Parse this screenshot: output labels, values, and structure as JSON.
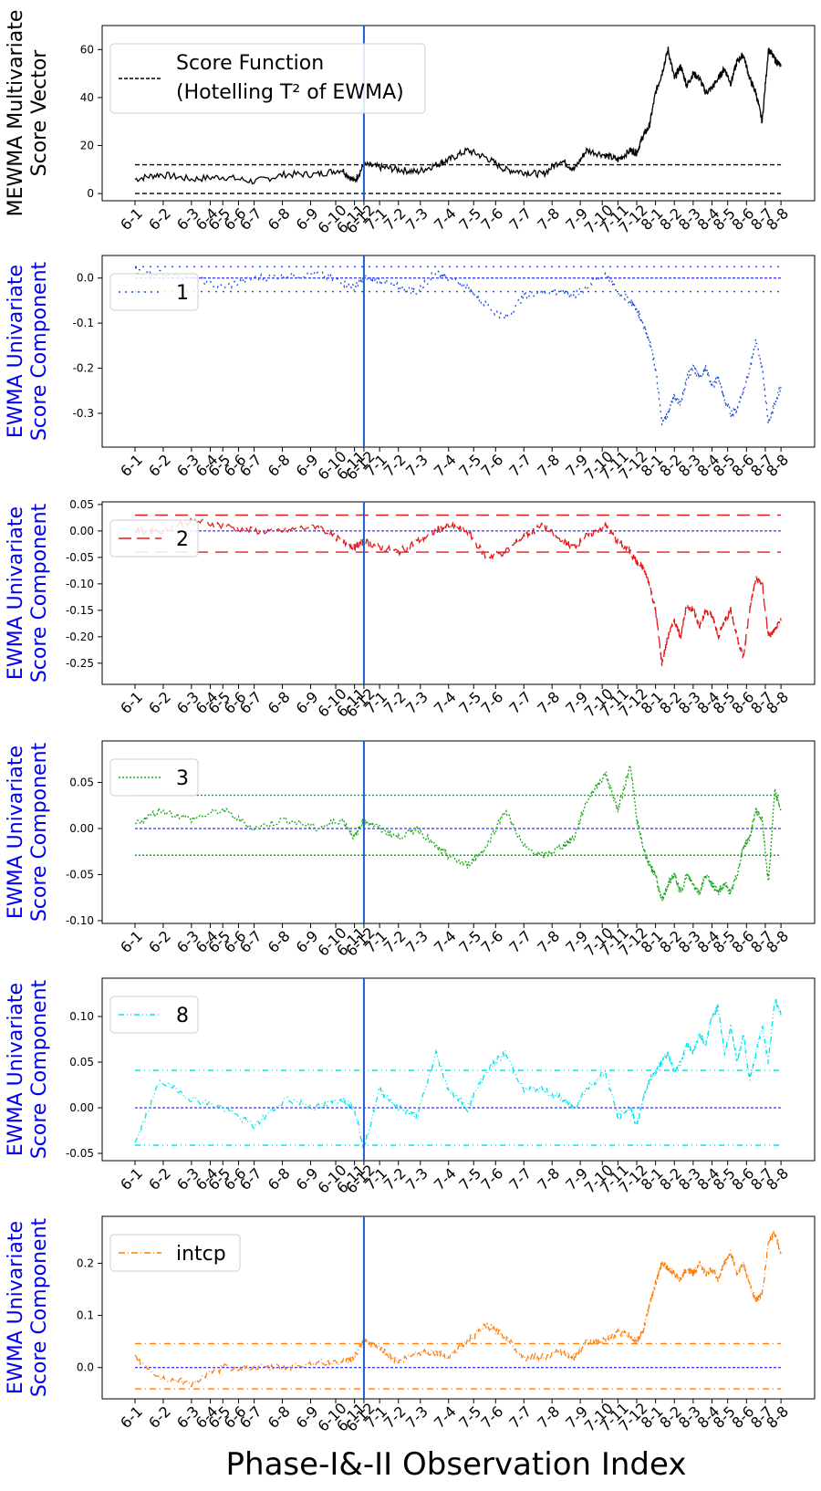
{
  "figure": {
    "xlabel": "Phase-I&-II Observation Index",
    "x_tick_labels": [
      "6-1",
      "6-2",
      "6-3",
      "6-4",
      "6-5",
      "6-6",
      "6-7",
      "6-8",
      "6-9",
      "6-10",
      "6-11",
      "6-12",
      "7-1",
      "7-2",
      "7-3",
      "7-4",
      "7-5",
      "7-6",
      "7-7",
      "7-8",
      "7-9",
      "7-10",
      "7-11",
      "7-12",
      "8-1",
      "8-2",
      "8-3",
      "8-4",
      "8-5",
      "8-6",
      "8-7",
      "8-8"
    ],
    "x_tick_positions": [
      0,
      45,
      90,
      120,
      140,
      165,
      190,
      235,
      280,
      320,
      350,
      365,
      390,
      420,
      455,
      500,
      540,
      575,
      620,
      665,
      710,
      745,
      770,
      800,
      830,
      860,
      890,
      920,
      945,
      975,
      1005,
      1030
    ],
    "x_range": [
      0,
      1040
    ],
    "changepoint_x": 365,
    "changepoint_color": "#1f5fd0"
  },
  "chart_data": [
    {
      "type": "line",
      "ylabel": "MEWMA Multivariate Score Vector",
      "ylabel_color": "#000000",
      "ylim": [
        -3,
        70
      ],
      "yticks": [
        0,
        20,
        40,
        60
      ],
      "color": "#000000",
      "legend": {
        "label_line1": "Score Function",
        "label_line2": "(Hotelling T² of EWMA)",
        "placement": "upper-left"
      },
      "upper_limit": 12,
      "lower_limit": 0,
      "center_line": null,
      "x": [
        0,
        40,
        90,
        140,
        190,
        240,
        290,
        330,
        350,
        365,
        390,
        420,
        450,
        480,
        500,
        530,
        560,
        590,
        620,
        650,
        680,
        700,
        720,
        750,
        770,
        790,
        800,
        810,
        820,
        830,
        840,
        850,
        860,
        870,
        880,
        890,
        900,
        910,
        920,
        930,
        940,
        950,
        960,
        970,
        980,
        990,
        1000,
        1010,
        1020,
        1030
      ],
      "y": [
        6,
        8,
        6,
        7,
        5,
        8,
        8,
        10,
        5,
        12,
        11,
        10,
        9,
        12,
        14,
        18,
        15,
        10,
        9,
        8,
        14,
        10,
        18,
        16,
        14,
        18,
        17,
        24,
        28,
        42,
        50,
        60,
        48,
        53,
        45,
        50,
        48,
        42,
        44,
        48,
        52,
        46,
        55,
        58,
        48,
        42,
        30,
        60,
        56,
        53
      ]
    },
    {
      "type": "line",
      "ylabel": "EWMA Univariate Score Component",
      "ylabel_color": "#0000ee",
      "ylim": [
        -0.375,
        0.05
      ],
      "yticks": [
        0.0,
        -0.1,
        -0.2,
        -0.3
      ],
      "color": "#1f4fd8",
      "legend": {
        "label_line1": "1",
        "label_line2": "",
        "placement": "upper-left"
      },
      "upper_limit": 0.025,
      "lower_limit": -0.03,
      "center_line": 0,
      "x": [
        0,
        40,
        90,
        140,
        190,
        240,
        290,
        330,
        350,
        365,
        390,
        420,
        450,
        480,
        500,
        530,
        560,
        590,
        620,
        650,
        680,
        700,
        720,
        750,
        770,
        790,
        800,
        810,
        820,
        830,
        840,
        850,
        860,
        870,
        880,
        890,
        900,
        910,
        920,
        930,
        940,
        950,
        960,
        970,
        980,
        990,
        1000,
        1010,
        1020,
        1030
      ],
      "y": [
        0.015,
        0.01,
        0.0,
        -0.02,
        0.0,
        0.005,
        0.01,
        -0.01,
        -0.02,
        0.0,
        -0.005,
        -0.02,
        -0.03,
        0.015,
        0.0,
        -0.02,
        -0.06,
        -0.09,
        -0.04,
        -0.03,
        -0.03,
        -0.04,
        -0.02,
        0.01,
        -0.03,
        -0.05,
        -0.07,
        -0.1,
        -0.14,
        -0.2,
        -0.32,
        -0.3,
        -0.26,
        -0.28,
        -0.22,
        -0.2,
        -0.22,
        -0.2,
        -0.24,
        -0.22,
        -0.27,
        -0.3,
        -0.29,
        -0.25,
        -0.2,
        -0.14,
        -0.2,
        -0.32,
        -0.28,
        -0.24
      ]
    },
    {
      "type": "line",
      "ylabel": "EWMA Univariate Score Component",
      "ylabel_color": "#0000ee",
      "ylim": [
        -0.29,
        0.055
      ],
      "yticks": [
        0.05,
        0.0,
        -0.05,
        -0.1,
        -0.15,
        -0.2,
        -0.25
      ],
      "color": "#e31a1c",
      "legend": {
        "label_line1": "2",
        "label_line2": "",
        "placement": "upper-left"
      },
      "upper_limit": 0.03,
      "lower_limit": -0.04,
      "center_line": 0,
      "x": [
        0,
        40,
        90,
        140,
        190,
        240,
        290,
        330,
        350,
        365,
        390,
        420,
        450,
        480,
        500,
        530,
        560,
        590,
        620,
        650,
        680,
        700,
        720,
        750,
        770,
        790,
        800,
        810,
        820,
        830,
        840,
        850,
        860,
        870,
        880,
        890,
        900,
        910,
        920,
        930,
        940,
        950,
        960,
        970,
        980,
        990,
        1000,
        1010,
        1020,
        1030
      ],
      "y": [
        0.0,
        0.0,
        0.02,
        0.01,
        0.0,
        0.0,
        0.01,
        -0.02,
        -0.03,
        -0.02,
        -0.03,
        -0.04,
        -0.02,
        0.0,
        0.01,
        0.0,
        -0.05,
        -0.04,
        -0.01,
        0.01,
        -0.02,
        -0.03,
        -0.01,
        0.01,
        -0.02,
        -0.04,
        -0.06,
        -0.07,
        -0.1,
        -0.15,
        -0.25,
        -0.2,
        -0.17,
        -0.2,
        -0.14,
        -0.15,
        -0.18,
        -0.15,
        -0.16,
        -0.2,
        -0.17,
        -0.15,
        -0.2,
        -0.24,
        -0.15,
        -0.09,
        -0.1,
        -0.2,
        -0.19,
        -0.17
      ]
    },
    {
      "type": "line",
      "ylabel": "EWMA Univariate Score Component",
      "ylabel_color": "#0000ee",
      "ylim": [
        -0.103,
        0.095
      ],
      "yticks": [
        0.05,
        0.0,
        -0.05,
        -0.1
      ],
      "color": "#1aa81a",
      "legend": {
        "label_line1": "3",
        "label_line2": "",
        "placement": "upper-left"
      },
      "upper_limit": 0.036,
      "lower_limit": -0.029,
      "center_line": 0,
      "x": [
        0,
        40,
        90,
        140,
        190,
        240,
        290,
        330,
        350,
        365,
        390,
        420,
        450,
        480,
        500,
        530,
        560,
        590,
        620,
        650,
        680,
        700,
        720,
        750,
        770,
        790,
        800,
        810,
        820,
        830,
        840,
        850,
        860,
        870,
        880,
        890,
        900,
        910,
        920,
        930,
        940,
        950,
        960,
        970,
        980,
        990,
        1000,
        1010,
        1020,
        1030
      ],
      "y": [
        0.005,
        0.02,
        0.01,
        0.02,
        0.0,
        0.01,
        0.0,
        0.01,
        -0.01,
        0.01,
        0.0,
        -0.01,
        0.0,
        -0.02,
        -0.03,
        -0.04,
        -0.02,
        0.02,
        -0.02,
        -0.03,
        -0.02,
        -0.01,
        0.03,
        0.06,
        0.02,
        0.07,
        0.01,
        -0.02,
        -0.04,
        -0.05,
        -0.08,
        -0.06,
        -0.05,
        -0.07,
        -0.05,
        -0.06,
        -0.07,
        -0.05,
        -0.06,
        -0.07,
        -0.06,
        -0.07,
        -0.05,
        -0.02,
        -0.01,
        0.02,
        0.01,
        -0.06,
        0.04,
        0.02
      ]
    },
    {
      "type": "line",
      "ylabel": "EWMA Univariate Score Component",
      "ylabel_color": "#0000ee",
      "ylim": [
        -0.058,
        0.142
      ],
      "yticks": [
        0.1,
        0.05,
        0.0,
        -0.05
      ],
      "color": "#00e5ee",
      "legend": {
        "label_line1": "8",
        "label_line2": "",
        "placement": "upper-left"
      },
      "upper_limit": 0.041,
      "lower_limit": -0.041,
      "center_line": 0,
      "x": [
        0,
        40,
        90,
        140,
        190,
        240,
        290,
        330,
        350,
        365,
        390,
        420,
        450,
        480,
        500,
        530,
        560,
        590,
        620,
        650,
        680,
        700,
        720,
        750,
        770,
        790,
        800,
        810,
        820,
        830,
        840,
        850,
        860,
        870,
        880,
        890,
        900,
        910,
        920,
        930,
        940,
        950,
        960,
        970,
        980,
        990,
        1000,
        1010,
        1020,
        1030
      ],
      "y": [
        -0.04,
        0.03,
        0.01,
        0.0,
        -0.02,
        0.01,
        0.0,
        0.01,
        0.0,
        -0.045,
        0.02,
        0.0,
        -0.01,
        0.06,
        0.02,
        0.0,
        0.04,
        0.06,
        0.02,
        0.02,
        0.01,
        0.0,
        0.02,
        0.04,
        -0.01,
        0.0,
        -0.02,
        0.01,
        0.03,
        0.04,
        0.05,
        0.06,
        0.04,
        0.05,
        0.07,
        0.06,
        0.08,
        0.07,
        0.1,
        0.11,
        0.06,
        0.09,
        0.05,
        0.08,
        0.03,
        0.06,
        0.09,
        0.05,
        0.12,
        0.1
      ]
    },
    {
      "type": "line",
      "ylabel": "EWMA Univariate Score Component",
      "ylabel_color": "#0000ee",
      "ylim": [
        -0.06,
        0.29
      ],
      "yticks": [
        0.2,
        0.1,
        0.0
      ],
      "color": "#ff7f0e",
      "legend": {
        "label_line1": "intcp",
        "label_line2": "",
        "placement": "upper-left"
      },
      "upper_limit": 0.046,
      "lower_limit": -0.041,
      "center_line": 0,
      "x": [
        0,
        40,
        90,
        140,
        190,
        240,
        290,
        330,
        350,
        365,
        390,
        420,
        450,
        480,
        500,
        530,
        560,
        590,
        620,
        650,
        680,
        700,
        720,
        750,
        770,
        790,
        800,
        810,
        820,
        830,
        840,
        850,
        860,
        870,
        880,
        890,
        900,
        910,
        920,
        930,
        940,
        950,
        960,
        970,
        980,
        990,
        1000,
        1010,
        1020,
        1030
      ],
      "y": [
        0.02,
        -0.02,
        -0.03,
        0.0,
        0.0,
        0.0,
        0.01,
        0.01,
        0.02,
        0.05,
        0.04,
        0.01,
        0.03,
        0.03,
        0.02,
        0.05,
        0.08,
        0.06,
        0.02,
        0.02,
        0.03,
        0.02,
        0.05,
        0.05,
        0.07,
        0.06,
        0.05,
        0.07,
        0.12,
        0.16,
        0.2,
        0.19,
        0.18,
        0.17,
        0.19,
        0.18,
        0.2,
        0.18,
        0.19,
        0.17,
        0.2,
        0.22,
        0.18,
        0.2,
        0.16,
        0.13,
        0.14,
        0.24,
        0.26,
        0.22
      ]
    }
  ]
}
